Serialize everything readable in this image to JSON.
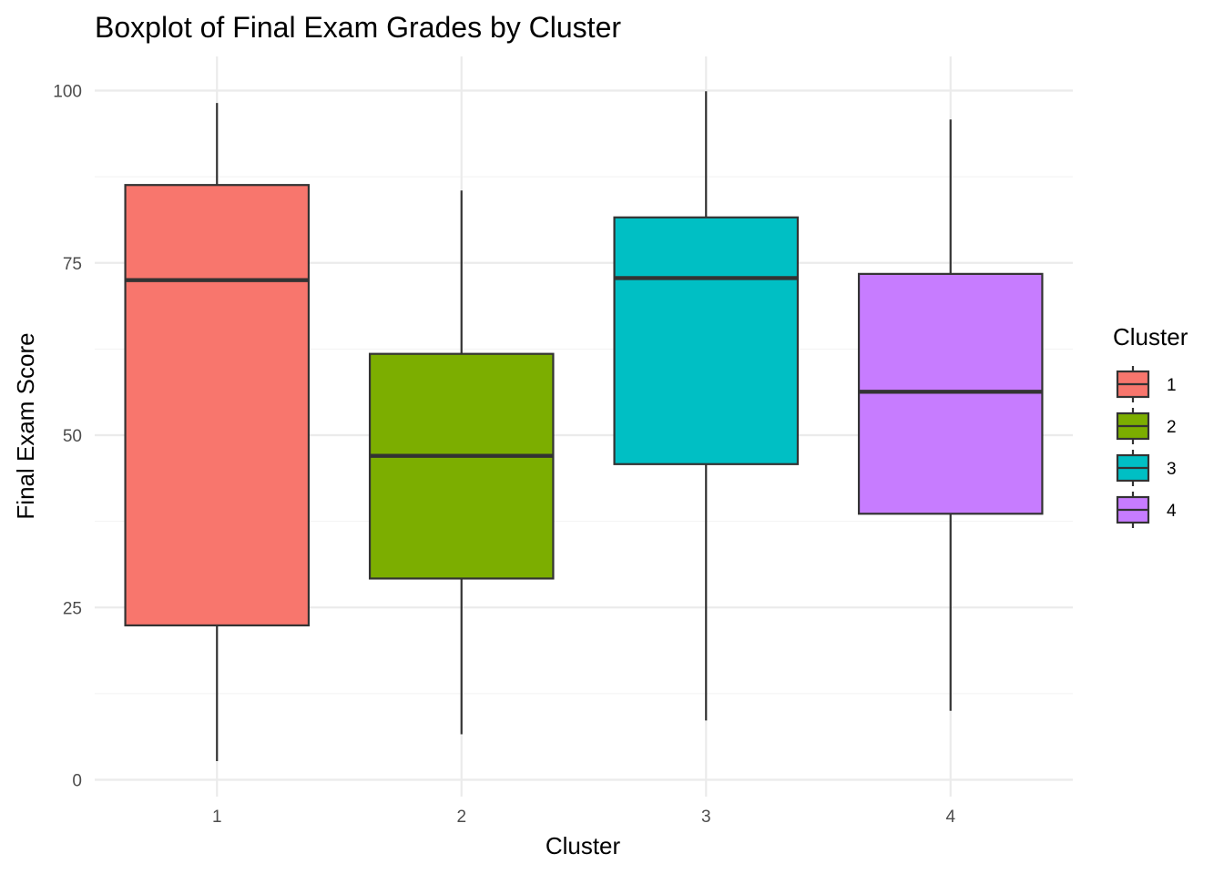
{
  "chart_data": {
    "type": "boxplot",
    "title": "Boxplot of Final Exam Grades by Cluster",
    "xlabel": "Cluster",
    "ylabel": "Final Exam Score",
    "ylim": [
      0,
      100
    ],
    "yticks": [
      0,
      25,
      50,
      75,
      100
    ],
    "grid": true,
    "legend": {
      "title": "Cluster",
      "placement": "right"
    },
    "categories": [
      "1",
      "2",
      "3",
      "4"
    ],
    "series": [
      {
        "name": "1",
        "min": 2.7,
        "q1": 22.4,
        "median": 72.5,
        "q3": 86.3,
        "max": 98.2,
        "color": "#F8766D"
      },
      {
        "name": "2",
        "min": 6.6,
        "q1": 29.2,
        "median": 47.0,
        "q3": 61.8,
        "max": 85.5,
        "color": "#7CAE00"
      },
      {
        "name": "3",
        "min": 8.6,
        "q1": 45.8,
        "median": 72.8,
        "q3": 81.6,
        "max": 99.9,
        "color": "#00BFC4"
      },
      {
        "name": "4",
        "min": 10.0,
        "q1": 38.6,
        "median": 56.3,
        "q3": 73.4,
        "max": 95.8,
        "color": "#C77CFF"
      }
    ]
  }
}
